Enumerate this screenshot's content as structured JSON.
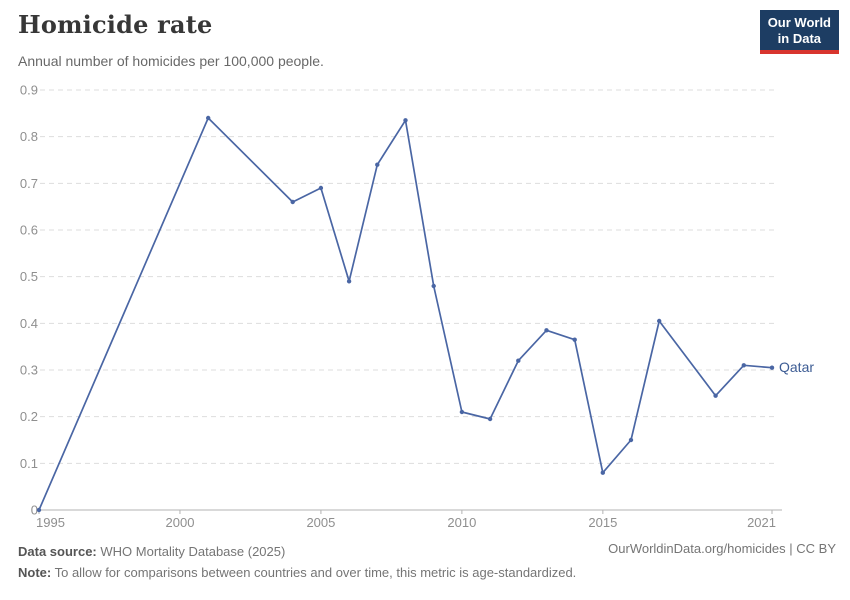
{
  "header": {
    "title": "Homicide rate",
    "subtitle": "Annual number of homicides per 100,000 people."
  },
  "logo": {
    "line1": "Our World",
    "line2": "in Data",
    "bg_color": "#1d3d63",
    "accent_color": "#d8352e"
  },
  "footer": {
    "source_label": "Data source:",
    "source_text": "WHO Mortality Database (2025)",
    "note_label": "Note:",
    "note_text": "To allow for comparisons between countries and over time, this metric is age-standardized.",
    "cc_text": "OurWorldinData.org/homicides | CC BY"
  },
  "chart_data": {
    "type": "line",
    "title": "Homicide rate",
    "subtitle": "Annual number of homicides per 100,000 people.",
    "xlabel": "",
    "ylabel": "",
    "xlim": [
      1995,
      2021
    ],
    "ylim": [
      0,
      0.9
    ],
    "x_ticks": [
      1995,
      2000,
      2005,
      2010,
      2015,
      2021
    ],
    "y_ticks": [
      0,
      0.1,
      0.2,
      0.3,
      0.4,
      0.5,
      0.6,
      0.7,
      0.8,
      0.9
    ],
    "grid": "horizontal-dashed",
    "legend_position": "end-of-line-label",
    "gridline_color": "#dddddd",
    "axis_color": "#b3b3b3",
    "tick_label_color": "#8f8f8f",
    "series": [
      {
        "name": "Qatar",
        "color": "#4a66a4",
        "label_color": "#3d5c94",
        "points": [
          [
            1995,
            0
          ],
          [
            2001,
            0.84
          ],
          [
            2004,
            0.66
          ],
          [
            2005,
            0.69
          ],
          [
            2006,
            0.49
          ],
          [
            2007,
            0.74
          ],
          [
            2008,
            0.835
          ],
          [
            2009,
            0.48
          ],
          [
            2010,
            0.21
          ],
          [
            2011,
            0.195
          ],
          [
            2012,
            0.32
          ],
          [
            2013,
            0.385
          ],
          [
            2014,
            0.365
          ],
          [
            2015,
            0.08
          ],
          [
            2016,
            0.15
          ],
          [
            2017,
            0.405
          ],
          [
            2019,
            0.245
          ],
          [
            2020,
            0.31
          ],
          [
            2021,
            0.305
          ]
        ]
      }
    ]
  }
}
